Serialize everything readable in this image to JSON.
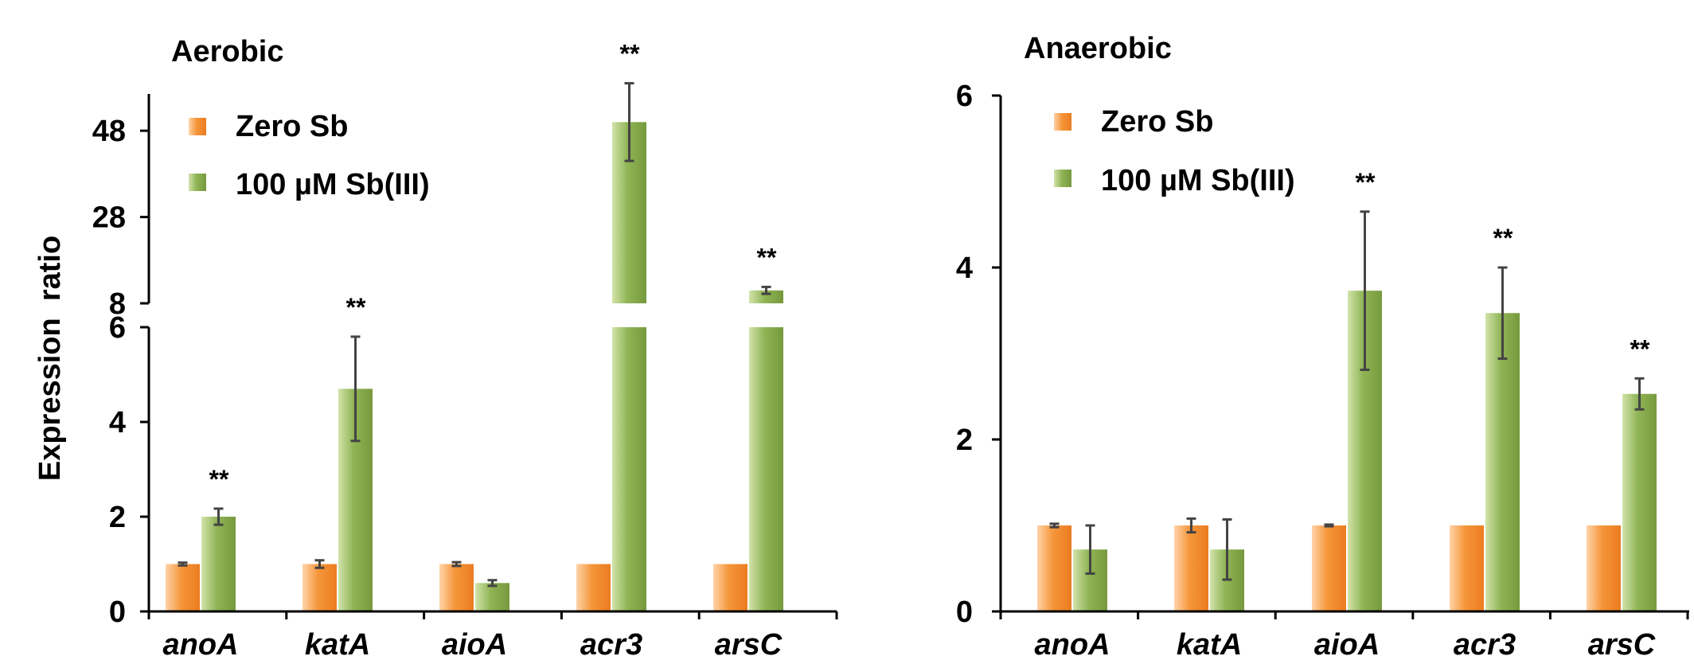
{
  "chart_data": [
    {
      "type": "bar",
      "title": "Aerobic",
      "xlabel": "",
      "ylabel": "Expression  ratio",
      "categories": [
        "anoA",
        "katA",
        "aioA",
        "acr3",
        "arsC"
      ],
      "broken_axis": {
        "lower_ylim": [
          0,
          6
        ],
        "lower_ticks": [
          "0",
          "2",
          "4",
          "6"
        ],
        "upper_ylim": [
          8,
          58
        ],
        "upper_ticks": [
          "8",
          "28",
          "48"
        ]
      },
      "series": [
        {
          "name": "Zero Sb",
          "color": "#f28e2b",
          "values": [
            1.0,
            1.0,
            1.0,
            1.0,
            1.0
          ],
          "errors": [
            0.03,
            0.08,
            0.04,
            0,
            0
          ]
        },
        {
          "name": "100 µM Sb(III)",
          "color": "#8db052",
          "values": [
            2.0,
            4.7,
            0.6,
            50,
            11
          ],
          "errors": [
            0.17,
            1.1,
            0.06,
            9,
            0.8
          ]
        }
      ],
      "significance": [
        {
          "category": "anoA",
          "label": "**"
        },
        {
          "category": "katA",
          "label": "**"
        },
        {
          "category": "acr3",
          "label": "**"
        },
        {
          "category": "arsC",
          "label": "**"
        }
      ],
      "legend_position": "top-left"
    },
    {
      "type": "bar",
      "title": "Anaerobic",
      "xlabel": "",
      "ylabel": "",
      "categories": [
        "anoA",
        "katA",
        "aioA",
        "acr3",
        "arsC"
      ],
      "ylim": [
        0,
        6
      ],
      "yticks": [
        "0",
        "2",
        "4",
        "6"
      ],
      "series": [
        {
          "name": "Zero Sb",
          "color": "#f28e2b",
          "values": [
            1.0,
            1.0,
            1.0,
            1.0,
            1.0
          ],
          "errors": [
            0.02,
            0.08,
            0.01,
            0,
            0
          ]
        },
        {
          "name": "100 µM Sb(III)",
          "color": "#8db052",
          "values": [
            0.72,
            0.72,
            3.73,
            3.47,
            2.53
          ],
          "errors": [
            0.28,
            0.35,
            0.92,
            0.53,
            0.18
          ]
        }
      ],
      "significance": [
        {
          "category": "aioA",
          "label": "**"
        },
        {
          "category": "acr3",
          "label": "**"
        },
        {
          "category": "arsC",
          "label": "**"
        }
      ],
      "legend_position": "top-left"
    }
  ]
}
